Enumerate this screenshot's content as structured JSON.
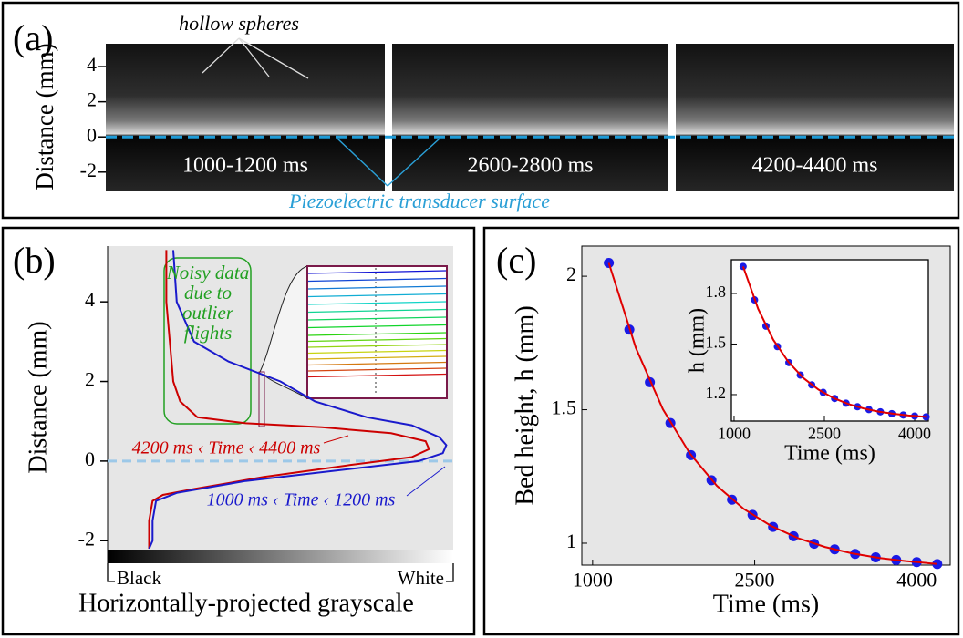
{
  "chart_data": [
    {
      "type": "image",
      "panel": "(a)",
      "ylabel": "Distance (mm)",
      "ylim": [
        -3.1,
        5.3
      ],
      "yticks": [
        -2,
        0,
        2,
        4
      ],
      "frames": [
        "1000-1200 ms",
        "2600-2800 ms",
        "4200-4400  ms"
      ],
      "annotations": [
        "hollow spheres",
        "Piezoelectric transducer surface"
      ]
    },
    {
      "type": "line",
      "panel": "(b)",
      "xlabel": "Horizontally-projected grayscale",
      "ylabel": "Distance (mm)",
      "xlim": [
        0,
        1
      ],
      "xticks": [
        {
          "value": 0,
          "label": "Black"
        },
        {
          "value": 1,
          "label": "White"
        }
      ],
      "ylim": [
        -2.2,
        5.4
      ],
      "yticks": [
        -2,
        0,
        2,
        4
      ],
      "annotation": "Noisy data due to outlier flights",
      "series": [
        {
          "name": "4200 ms ‹ Time ‹ 4400 ms",
          "color": "#cc0000",
          "x": [
            0.17,
            0.17,
            0.18,
            0.19,
            0.21,
            0.26,
            0.4,
            0.62,
            0.82,
            0.92,
            0.93,
            0.88,
            0.7,
            0.45,
            0.25,
            0.16,
            0.13,
            0.12,
            0.12,
            0.12
          ],
          "values": [
            5.3,
            4,
            3,
            2,
            1.5,
            1.1,
            0.95,
            0.85,
            0.7,
            0.5,
            0.3,
            0.1,
            -0.1,
            -0.4,
            -0.7,
            -0.85,
            -1,
            -1.5,
            -2,
            -2.2
          ]
        },
        {
          "name": "1000 ms ‹ Time ‹ 1200 ms",
          "color": "#1a1acc",
          "x": [
            0.19,
            0.2,
            0.25,
            0.35,
            0.5,
            0.6,
            0.75,
            0.88,
            0.96,
            0.98,
            0.97,
            0.9,
            0.7,
            0.4,
            0.2,
            0.14,
            0.13,
            0.13,
            0.12
          ],
          "values": [
            5.3,
            4,
            3,
            2.5,
            2,
            1.5,
            1.1,
            0.9,
            0.6,
            0.4,
            0.2,
            0,
            -0.2,
            -0.5,
            -0.8,
            -1,
            -1.5,
            -2,
            -2.2
          ]
        }
      ]
    },
    {
      "type": "scatter",
      "panel": "(c)",
      "xlabel": "Time (ms)",
      "ylabel": "Bed height, h (mm)",
      "xlim": [
        900,
        4310
      ],
      "ylim": [
        0.918,
        2.113
      ],
      "xticks": [
        1000,
        2500,
        4000
      ],
      "yticks": [
        1,
        1.5,
        2
      ],
      "series": [
        {
          "type": "scatter",
          "color": "#1a1ae6",
          "x": [
            1150,
            1340,
            1530,
            1720,
            1910,
            2100,
            2290,
            2480,
            2670,
            2860,
            3050,
            3240,
            3430,
            3620,
            3810,
            4000,
            4190
          ],
          "values": [
            2.05,
            1.8,
            1.603,
            1.45,
            1.33,
            1.236,
            1.163,
            1.106,
            1.061,
            1.026,
            0.998,
            0.977,
            0.96,
            0.947,
            0.937,
            0.929,
            0.922
          ]
        },
        {
          "type": "line",
          "color": "#e00000",
          "x": [
            1150,
            1400,
            1650,
            1900,
            2150,
            2400,
            2650,
            2900,
            3150,
            3400,
            3650,
            3900,
            4190
          ],
          "values": [
            2.05,
            1.732,
            1.502,
            1.336,
            1.215,
            1.128,
            1.065,
            1.019,
            0.986,
            0.962,
            0.945,
            0.933,
            0.922
          ]
        }
      ]
    },
    {
      "type": "scatter",
      "xlabel": "Time (ms)",
      "ylabel": "h (mm)",
      "xlim": [
        955,
        4227
      ],
      "ylim": [
        1.043,
        2.0
      ],
      "xticks": [
        1000,
        2500,
        4000
      ],
      "yticks": [
        1.2,
        1.5,
        1.8
      ],
      "series": [
        {
          "type": "scatter",
          "color": "#1a1ae6",
          "x": [
            1150,
            1340,
            1530,
            1720,
            1910,
            2100,
            2290,
            2480,
            2670,
            2860,
            3050,
            3240,
            3430,
            3620,
            3810,
            4000,
            4190
          ],
          "values": [
            1.96,
            1.762,
            1.606,
            1.485,
            1.39,
            1.316,
            1.258,
            1.213,
            1.177,
            1.149,
            1.128,
            1.111,
            1.098,
            1.087,
            1.079,
            1.073,
            1.068
          ]
        },
        {
          "type": "line",
          "color": "#e00000",
          "x": [
            1150,
            1400,
            1650,
            1900,
            2150,
            2400,
            2650,
            2900,
            3150,
            3400,
            3650,
            3900,
            4190
          ],
          "values": [
            1.96,
            1.708,
            1.526,
            1.395,
            1.299,
            1.23,
            1.18,
            1.144,
            1.118,
            1.099,
            1.086,
            1.076,
            1.068
          ]
        }
      ]
    }
  ]
}
